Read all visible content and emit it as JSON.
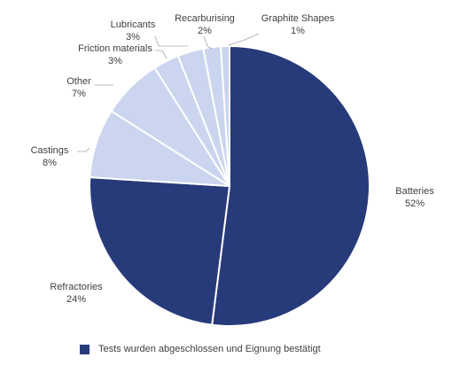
{
  "chart_data": {
    "type": "pie",
    "slices": [
      {
        "label": "Batteries",
        "value": 52,
        "value_label": "52%",
        "color": "#273a7a"
      },
      {
        "label": "Refractories",
        "value": 24,
        "value_label": "24%",
        "color": "#273a7a"
      },
      {
        "label": "Castings",
        "value": 8,
        "value_label": "8%",
        "color": "#cbd5ef"
      },
      {
        "label": "Other",
        "value": 7,
        "value_label": "7%",
        "color": "#cbd5ef"
      },
      {
        "label": "Friction materials",
        "value": 3,
        "value_label": "3%",
        "color": "#cbd5ef"
      },
      {
        "label": "Lubricants",
        "value": 3,
        "value_label": "3%",
        "color": "#cbd5ef"
      },
      {
        "label": "Recarburising",
        "value": 2,
        "value_label": "2%",
        "color": "#cbd5ef"
      },
      {
        "label": "Graphite Shapes",
        "value": 1,
        "value_label": "1%",
        "color": "#cbd5ef"
      }
    ],
    "legend": {
      "position": "bottom",
      "entries": [
        {
          "label": "Tests wurden abgeschlossen und Eignung bestätigt",
          "color": "#273a7a"
        }
      ]
    }
  }
}
